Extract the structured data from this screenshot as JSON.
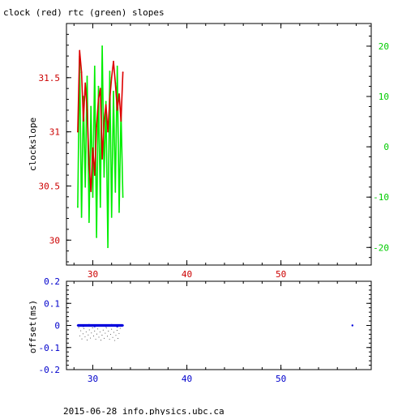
{
  "title": "clock (red) rtc (green) slopes",
  "footer": "2015-06-28 info.physics.ubc.ca",
  "colors": {
    "clock": "#dd0000",
    "rtc": "#00ee00",
    "offset": "#0000dd",
    "axis": "#000000",
    "left_tick": "#cc0000",
    "right_tick": "#00cc00",
    "bottom_tick_top": "#cc0000",
    "bottom_tick_bottom": "#0000cc"
  },
  "chart_data": [
    {
      "type": "line",
      "title": "clock (red) rtc (green) slopes",
      "xlabel": "",
      "ylabel": "clockslope",
      "xlim": [
        27.2,
        59.6
      ],
      "ylim": [
        29.77,
        32.0
      ],
      "y2lim": [
        -23.5,
        24.5
      ],
      "xticks": [
        30,
        40,
        50
      ],
      "yticks": [
        30,
        30.5,
        31,
        31.5
      ],
      "y2ticks": [
        -20,
        -10,
        0,
        10,
        20
      ],
      "legend": "none",
      "grid": false,
      "series": [
        {
          "name": "clock",
          "axis": "left",
          "x": [
            28.4,
            28.6,
            28.8,
            29.0,
            29.2,
            29.4,
            29.6,
            29.8,
            30.0,
            30.2,
            30.4,
            30.6,
            30.8,
            31.0,
            31.2,
            31.4,
            31.6,
            31.8,
            32.0,
            32.2,
            32.4,
            32.6,
            32.8,
            33.0,
            33.2
          ],
          "values": [
            31.0,
            31.75,
            31.55,
            31.1,
            31.45,
            31.2,
            30.7,
            30.45,
            30.85,
            30.6,
            31.05,
            31.3,
            31.4,
            30.75,
            31.1,
            31.25,
            31.0,
            31.3,
            31.5,
            31.65,
            31.45,
            31.2,
            31.35,
            31.1,
            31.55
          ]
        },
        {
          "name": "rtc",
          "axis": "right",
          "x": [
            28.4,
            28.6,
            28.8,
            29.0,
            29.2,
            29.4,
            29.6,
            29.8,
            30.0,
            30.2,
            30.4,
            30.6,
            30.8,
            31.0,
            31.2,
            31.4,
            31.6,
            31.8,
            32.0,
            32.2,
            32.4,
            32.6,
            32.8,
            33.0,
            33.2
          ],
          "values": [
            -12,
            18,
            -14,
            10,
            -8,
            14,
            -15,
            8,
            -10,
            16,
            -18,
            12,
            -12,
            20,
            -6,
            9,
            -20,
            15,
            -14,
            11,
            -9,
            16,
            -13,
            7,
            -10
          ]
        }
      ]
    },
    {
      "type": "scatter",
      "ylabel": "offset(ms)",
      "xlim": [
        27.2,
        59.6
      ],
      "ylim": [
        -0.2,
        0.2
      ],
      "xticks": [
        30,
        40,
        50
      ],
      "yticks": [
        -0.2,
        -0.1,
        0,
        0.1,
        0.2
      ],
      "grid": false,
      "series": [
        {
          "name": "offset",
          "x": [
            28.4,
            29.0,
            29.6,
            30.2,
            30.8,
            31.4,
            32.0,
            32.6,
            33.2,
            57.6
          ],
          "values": [
            0.0,
            -0.003,
            0.002,
            -0.004,
            0.001,
            -0.003,
            0.002,
            -0.005,
            0.0,
            0.0
          ]
        }
      ]
    }
  ]
}
